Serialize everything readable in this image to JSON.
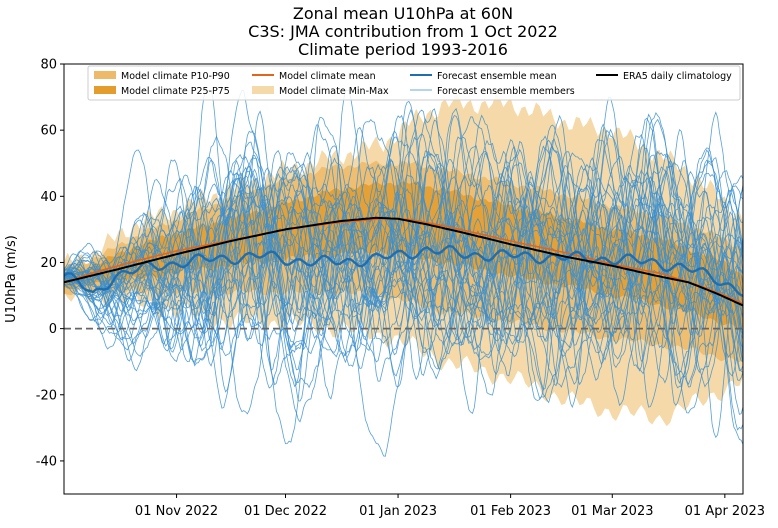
{
  "chart_data": {
    "type": "line",
    "title_lines": [
      "Zonal mean U10hPa at 60N",
      "C3S: JMA contribution from 1 Oct 2022",
      "Climate period 1993-2016"
    ],
    "ylabel": "U10hPa (m/s)",
    "xlabel": "",
    "ylim": [
      -50,
      80
    ],
    "xlim_days": [
      0,
      187
    ],
    "yticks": [
      -40,
      -20,
      0,
      20,
      40,
      60,
      80
    ],
    "xticks": [
      {
        "day": 31,
        "label": "01 Nov 2022"
      },
      {
        "day": 61,
        "label": "01 Dec 2022"
      },
      {
        "day": 92,
        "label": "01 Jan 2023"
      },
      {
        "day": 123,
        "label": "01 Feb 2023"
      },
      {
        "day": 151,
        "label": "01 Mar 2023"
      },
      {
        "day": 182,
        "label": "01 Apr 2023"
      }
    ],
    "zero_line": 0,
    "legend": [
      {
        "key": "p1090",
        "label": "Model climate P10-P90"
      },
      {
        "key": "p2575",
        "label": "Model climate P25-P75"
      },
      {
        "key": "mean",
        "label": "Model climate mean"
      },
      {
        "key": "minmax",
        "label": "Model climate Min-Max"
      },
      {
        "key": "fmean",
        "label": "Forecast ensemble mean"
      },
      {
        "key": "fmembers",
        "label": "Forecast ensemble members"
      },
      {
        "key": "era5",
        "label": "ERA5 daily climatology"
      }
    ],
    "colors": {
      "minmax": "#f5d9a8",
      "p1090": "#eeba6a",
      "p2575": "#e49c2c",
      "mean": "#e0661b",
      "fmean": "#1f6fb0",
      "fmembers": "#3a8fd0",
      "era5": "#000000",
      "zero": "#666666"
    },
    "climatology": {
      "days": [
        0,
        10,
        20,
        31,
        45,
        61,
        75,
        88,
        95,
        105,
        123,
        140,
        151,
        165,
        175,
        182,
        187
      ],
      "mean": [
        14,
        17.5,
        20.5,
        23.5,
        26.5,
        30,
        32,
        33.3,
        33,
        31,
        26.5,
        22.5,
        19.5,
        16.5,
        13,
        10,
        7.5
      ],
      "p25": [
        12,
        14,
        15,
        17,
        19,
        21,
        22.5,
        23.5,
        22,
        20,
        16,
        12.5,
        10,
        7,
        4,
        1.5,
        0
      ],
      "p75": [
        16,
        20,
        25,
        29,
        33,
        38,
        42,
        44,
        44,
        42,
        37,
        33,
        30,
        27,
        23,
        20,
        16
      ],
      "p10": [
        10,
        12,
        11,
        11,
        11,
        11,
        11,
        10,
        8,
        5,
        2,
        -1,
        -3,
        -5,
        -7,
        -9,
        -10
      ],
      "p90": [
        18,
        22,
        28,
        33,
        39,
        45,
        49,
        50,
        50,
        48,
        44,
        40,
        37,
        34,
        30,
        27,
        24
      ],
      "min": [
        9,
        10,
        8,
        5,
        2,
        2,
        0,
        -2,
        -5,
        -10,
        -15,
        -22,
        -25,
        -27,
        -22,
        -18,
        -16
      ],
      "max": [
        19,
        24,
        32,
        36,
        42,
        48,
        52,
        56,
        62,
        68,
        68,
        62,
        60,
        52,
        45,
        38,
        34
      ]
    },
    "era5": {
      "days": [
        0,
        15,
        31,
        46,
        61,
        76,
        86,
        92,
        100,
        110,
        123,
        137,
        151,
        163,
        172,
        180,
        187
      ],
      "values": [
        14,
        18,
        22.5,
        26.5,
        30,
        32.5,
        33.5,
        33.2,
        31.5,
        29,
        25.5,
        22,
        19,
        16,
        14,
        10.5,
        7
      ]
    },
    "forecast_mean": {
      "days": [
        0,
        4,
        8,
        14,
        25,
        40,
        55,
        61,
        70,
        80,
        92,
        100,
        110,
        123,
        137,
        151,
        163,
        172,
        180,
        187
      ],
      "values": [
        16,
        14,
        10,
        16,
        19,
        21,
        22,
        21,
        20,
        20.5,
        22,
        24,
        22.5,
        22,
        21.5,
        21,
        20,
        18,
        15,
        11
      ]
    },
    "forecast_members": {
      "count": 40,
      "start_value": 16,
      "day_range": [
        0,
        187
      ]
    }
  }
}
